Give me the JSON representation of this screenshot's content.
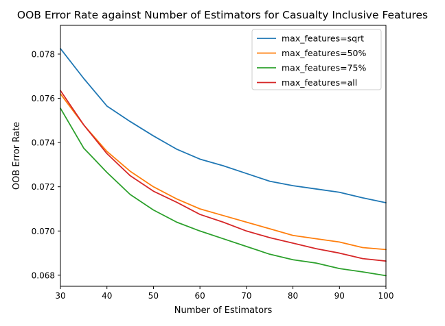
{
  "chart_data": {
    "type": "line",
    "title": "OOB Error Rate against Number of Estimators for Casualty Inclusive Features",
    "xlabel": "Number of Estimators",
    "ylabel": "OOB Error Rate",
    "xlim": [
      30,
      100
    ],
    "ylim": [
      0.0675,
      0.0793
    ],
    "x_ticks": [
      30,
      40,
      50,
      60,
      70,
      80,
      90,
      100
    ],
    "x_tick_labels": [
      "30",
      "40",
      "50",
      "60",
      "70",
      "80",
      "90",
      "100"
    ],
    "y_ticks": [
      0.068,
      0.07,
      0.072,
      0.074,
      0.076,
      0.078
    ],
    "y_tick_labels": [
      "0.068",
      "0.070",
      "0.072",
      "0.074",
      "0.076",
      "0.078"
    ],
    "grid": false,
    "legend_position": "top-right",
    "x": [
      30,
      35,
      40,
      45,
      50,
      55,
      60,
      65,
      70,
      75,
      80,
      85,
      90,
      95,
      100
    ],
    "series": [
      {
        "name": "max_features=sqrt",
        "color": "#1f77b4",
        "values": [
          0.07825,
          0.0769,
          0.07565,
          0.07495,
          0.0743,
          0.0737,
          0.07325,
          0.07295,
          0.0726,
          0.07225,
          0.07205,
          0.0719,
          0.07175,
          0.0715,
          0.07128
        ]
      },
      {
        "name": "max_features=50%",
        "color": "#ff7f0e",
        "values": [
          0.0762,
          0.0748,
          0.0736,
          0.0727,
          0.072,
          0.07145,
          0.071,
          0.0707,
          0.0704,
          0.0701,
          0.0698,
          0.06965,
          0.0695,
          0.06925,
          0.06916
        ]
      },
      {
        "name": "max_features=75%",
        "color": "#2ca02c",
        "values": [
          0.07555,
          0.07375,
          0.07265,
          0.07165,
          0.07095,
          0.0704,
          0.07,
          0.06965,
          0.0693,
          0.06895,
          0.0687,
          0.06855,
          0.0683,
          0.06815,
          0.06798
        ]
      },
      {
        "name": "max_features=all",
        "color": "#d62728",
        "values": [
          0.07635,
          0.0748,
          0.0735,
          0.0725,
          0.0718,
          0.0713,
          0.07075,
          0.0704,
          0.07,
          0.0697,
          0.06945,
          0.0692,
          0.069,
          0.06875,
          0.06864
        ]
      }
    ]
  }
}
